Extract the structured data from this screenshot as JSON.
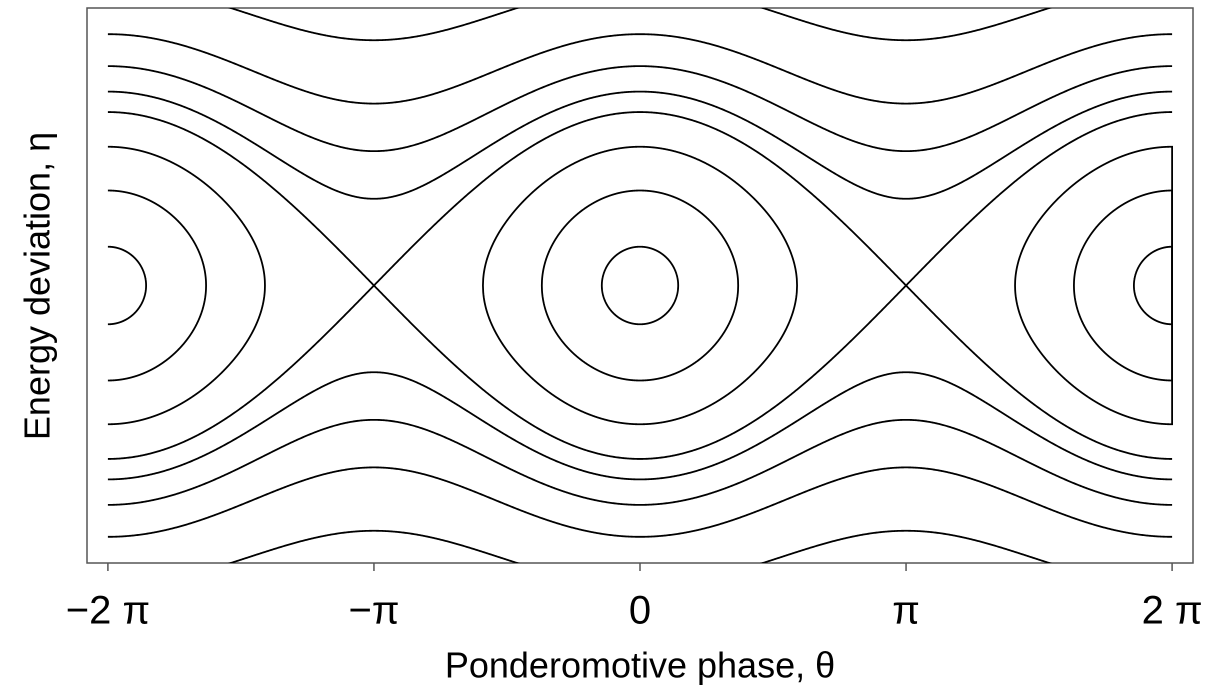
{
  "chart_data": {
    "type": "contour",
    "xlabel": "Ponderomotive phase, θ",
    "ylabel": "Energy deviation, η",
    "xlim": [
      -6.53,
      6.53
    ],
    "xticks": [
      {
        "value": -6.283185307,
        "label": "−2 π"
      },
      {
        "value": -3.141592654,
        "label": "−π"
      },
      0,
      {
        "value": 3.141592654,
        "label": "π"
      },
      {
        "value": 6.283185307,
        "label": "2 π"
      }
    ],
    "ylim": [
      -3.2,
      3.2
    ],
    "levels": [
      -0.9,
      -0.4,
      0.28,
      1,
      1.5,
      2.2,
      3.2,
      5
    ],
    "color": "#000000"
  }
}
